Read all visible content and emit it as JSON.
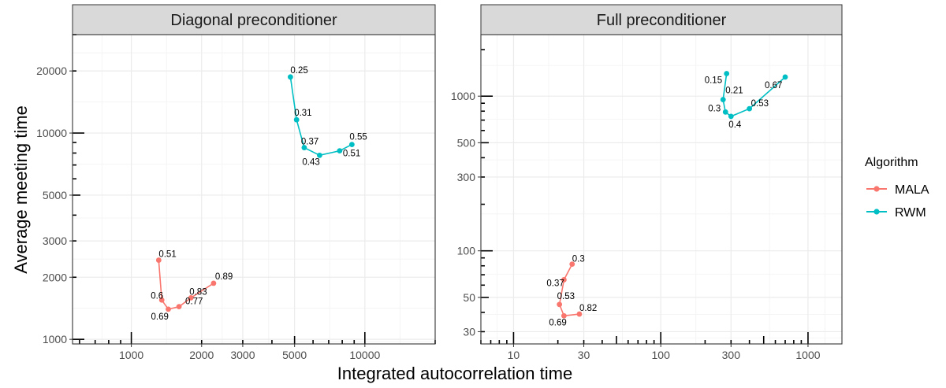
{
  "figure": {
    "xlabel": "Integrated autocorrelation time",
    "ylabel": "Average meeting time",
    "legend_title": "Algorithm",
    "legend": [
      {
        "name": "MALA",
        "color": "#F8766D"
      },
      {
        "name": "RWM",
        "color": "#00BFC4"
      }
    ]
  },
  "chart_data": [
    {
      "type": "line",
      "title": "Diagonal preconditioner",
      "xscale": "log",
      "yscale": "log",
      "xlim": [
        560,
        20000
      ],
      "ylim": [
        950,
        30000
      ],
      "xticks": [
        1000,
        2000,
        3000,
        5000,
        10000
      ],
      "yticks": [
        1000,
        2000,
        3000,
        5000,
        10000,
        20000
      ],
      "grid": true,
      "series": [
        {
          "name": "MALA",
          "color": "#F8766D",
          "points": [
            {
              "x": 1310,
              "y": 2420,
              "label": "0.51"
            },
            {
              "x": 1350,
              "y": 1550,
              "label": "0.6"
            },
            {
              "x": 1440,
              "y": 1400,
              "label": "0.69"
            },
            {
              "x": 1600,
              "y": 1440,
              "label": "0.77"
            },
            {
              "x": 1800,
              "y": 1590,
              "label": "0.83"
            },
            {
              "x": 2250,
              "y": 1870,
              "label": "0.89"
            }
          ]
        },
        {
          "name": "RWM",
          "color": "#00BFC4",
          "points": [
            {
              "x": 4800,
              "y": 18700,
              "label": "0.25"
            },
            {
              "x": 5100,
              "y": 11600,
              "label": "0.31"
            },
            {
              "x": 5500,
              "y": 8500,
              "label": "0.37"
            },
            {
              "x": 6400,
              "y": 7800,
              "label": "0.43"
            },
            {
              "x": 7800,
              "y": 8200,
              "label": "0.51"
            },
            {
              "x": 8800,
              "y": 8800,
              "label": "0.55"
            }
          ]
        }
      ]
    },
    {
      "type": "line",
      "title": "Full preconditioner",
      "xscale": "log",
      "yscale": "log",
      "xlim": [
        6,
        1700
      ],
      "ylim": [
        25,
        2500
      ],
      "xticks": [
        10,
        30,
        100,
        300,
        1000
      ],
      "yticks": [
        30,
        50,
        100,
        300,
        500,
        1000
      ],
      "grid": true,
      "series": [
        {
          "name": "MALA",
          "color": "#F8766D",
          "points": [
            {
              "x": 25,
              "y": 82,
              "label": "0.3"
            },
            {
              "x": 22,
              "y": 65,
              "label": "0.37"
            },
            {
              "x": 20.5,
              "y": 45,
              "label": "0.53"
            },
            {
              "x": 22,
              "y": 38,
              "label": "0.69"
            },
            {
              "x": 28,
              "y": 39,
              "label": "0.82"
            }
          ]
        },
        {
          "name": "RWM",
          "color": "#00BFC4",
          "points": [
            {
              "x": 280,
              "y": 1400,
              "label": "0.15"
            },
            {
              "x": 265,
              "y": 950,
              "label": "0.21"
            },
            {
              "x": 275,
              "y": 790,
              "label": "0.3"
            },
            {
              "x": 300,
              "y": 740,
              "label": "0.4"
            },
            {
              "x": 400,
              "y": 830,
              "label": "0.53"
            },
            {
              "x": 700,
              "y": 1330,
              "label": "0.67"
            }
          ]
        }
      ]
    }
  ]
}
